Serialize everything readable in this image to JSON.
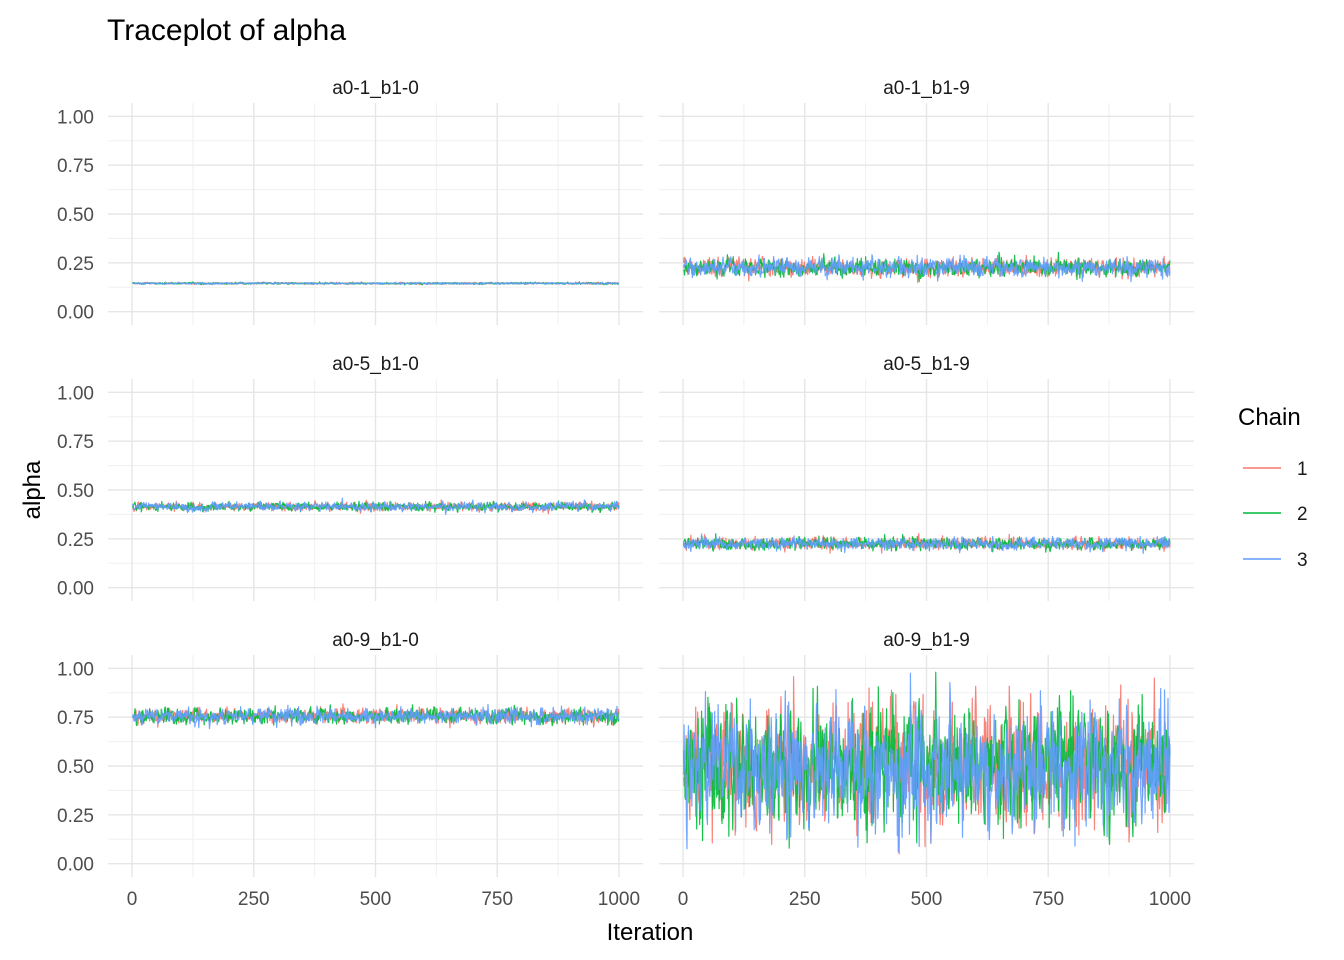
{
  "chart_data": {
    "type": "line",
    "title": "Traceplot of alpha",
    "xlabel": "Iteration",
    "ylabel": "alpha",
    "xlim": [
      0,
      1000
    ],
    "ylim": [
      0,
      1
    ],
    "x_ticks": [
      "0",
      "250",
      "500",
      "750",
      "1000"
    ],
    "y_ticks": [
      "0.00",
      "0.25",
      "0.50",
      "0.75",
      "1.00"
    ],
    "grid": true,
    "legend": {
      "title": "Chain",
      "position": "right",
      "entries": [
        {
          "label": "1",
          "color": "#F8766D"
        },
        {
          "label": "2",
          "color": "#00BA38"
        },
        {
          "label": "3",
          "color": "#619CFF"
        }
      ]
    },
    "iterations": 1000,
    "panels": [
      {
        "label": "a0-1_b1-0",
        "mean": 0.145,
        "sd": 0.003,
        "min": 0.135,
        "max": 0.16
      },
      {
        "label": "a0-1_b1-9",
        "mean": 0.225,
        "sd": 0.03,
        "min": 0.12,
        "max": 0.39
      },
      {
        "label": "a0-5_b1-0",
        "mean": 0.415,
        "sd": 0.014,
        "min": 0.36,
        "max": 0.47
      },
      {
        "label": "a0-5_b1-9",
        "mean": 0.225,
        "sd": 0.02,
        "min": 0.17,
        "max": 0.35
      },
      {
        "label": "a0-9_b1-0",
        "mean": 0.755,
        "sd": 0.025,
        "min": 0.65,
        "max": 0.89
      },
      {
        "label": "a0-9_b1-9",
        "mean": 0.5,
        "sd": 0.2,
        "min": 0.0,
        "max": 0.98
      }
    ]
  }
}
